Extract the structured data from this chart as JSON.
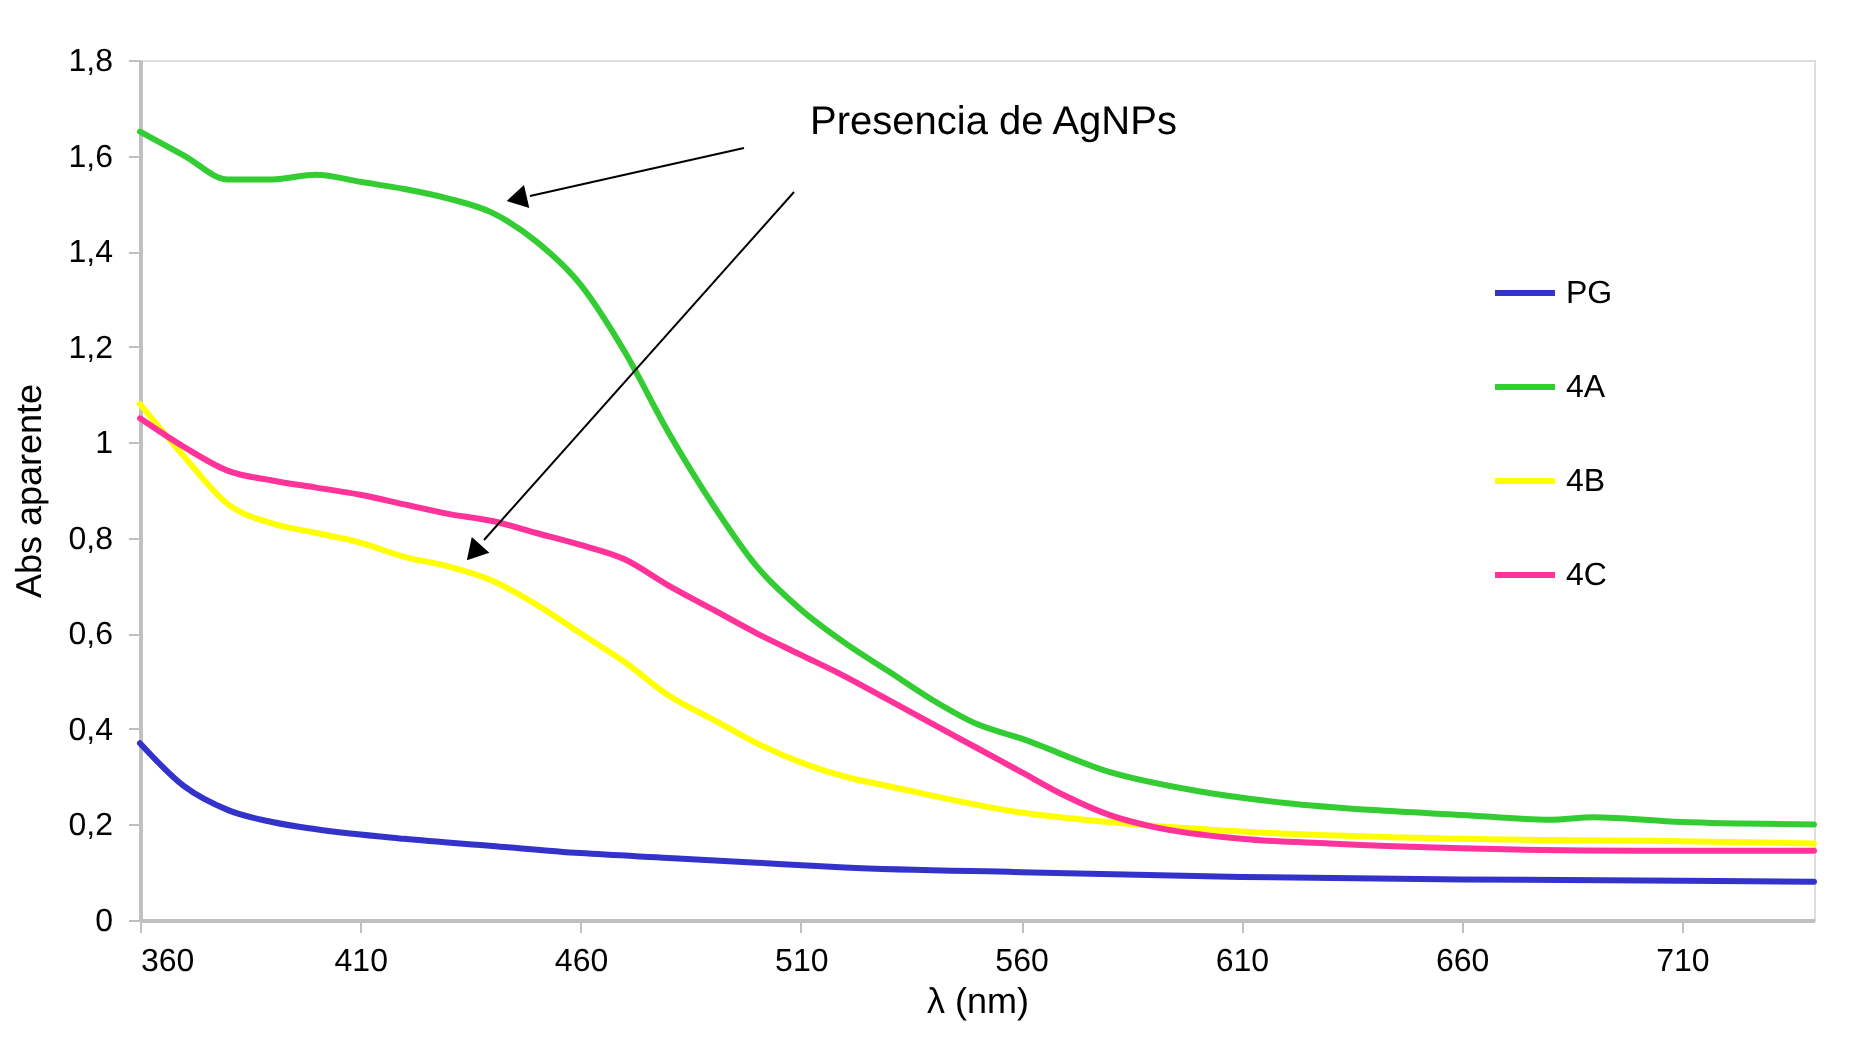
{
  "chart_data": {
    "type": "line",
    "xlabel": "λ (nm)",
    "ylabel": "Abs aparente",
    "annotations": [
      "Presencia de AgNPs"
    ],
    "xlim": [
      360,
      740
    ],
    "xticks": [
      360,
      410,
      460,
      510,
      560,
      610,
      660,
      710
    ],
    "ylim": [
      0,
      1.8
    ],
    "yticks": [
      0,
      {
        "value": 0.2,
        "label": "0,2"
      },
      {
        "value": 0.4,
        "label": "0,4"
      },
      {
        "value": 0.6,
        "label": "0,6"
      },
      {
        "value": 0.8,
        "label": "0,8"
      },
      1,
      {
        "value": 1.2,
        "label": "1,2"
      },
      {
        "value": 1.4,
        "label": "1,4"
      },
      {
        "value": 1.6,
        "label": "1,6"
      },
      {
        "value": 1.8,
        "label": "1,8"
      }
    ],
    "grid": false,
    "legend": "top right",
    "marker": "none",
    "line_style": "solid",
    "series": [
      {
        "name": "PG",
        "color": "#3333cc",
        "x": [
          360,
          370,
          380,
          390,
          400,
          420,
          440,
          460,
          480,
          500,
          520,
          560,
          610,
          660,
          710,
          740
        ],
        "values": [
          0.37,
          0.28,
          0.23,
          0.205,
          0.19,
          0.17,
          0.155,
          0.14,
          0.13,
          0.12,
          0.11,
          0.1,
          0.09,
          0.085,
          0.082,
          0.08
        ]
      },
      {
        "name": "4A",
        "color": "#33cc33",
        "x": [
          360,
          370,
          380,
          390,
          400,
          410,
          420,
          430,
          440,
          450,
          460,
          470,
          480,
          490,
          500,
          510,
          520,
          530,
          540,
          550,
          560,
          580,
          600,
          620,
          640,
          660,
          680,
          690,
          710,
          740
        ],
        "values": [
          1.65,
          1.6,
          1.55,
          1.55,
          1.56,
          1.545,
          1.53,
          1.51,
          1.48,
          1.42,
          1.33,
          1.19,
          1.02,
          0.87,
          0.74,
          0.65,
          0.58,
          0.52,
          0.46,
          0.41,
          0.38,
          0.31,
          0.27,
          0.245,
          0.23,
          0.22,
          0.21,
          0.215,
          0.205,
          0.2
        ]
      },
      {
        "name": "4B",
        "color": "#ffff00",
        "x": [
          360,
          370,
          380,
          390,
          400,
          410,
          420,
          430,
          440,
          450,
          460,
          470,
          480,
          490,
          500,
          510,
          520,
          530,
          560,
          580,
          610,
          660,
          710,
          740
        ],
        "values": [
          1.08,
          0.97,
          0.87,
          0.83,
          0.81,
          0.79,
          0.76,
          0.74,
          0.71,
          0.66,
          0.6,
          0.54,
          0.47,
          0.42,
          0.37,
          0.33,
          0.3,
          0.28,
          0.225,
          0.205,
          0.185,
          0.17,
          0.165,
          0.16
        ]
      },
      {
        "name": "4C",
        "color": "#ff3399",
        "x": [
          360,
          370,
          380,
          390,
          400,
          410,
          420,
          430,
          440,
          450,
          460,
          470,
          480,
          490,
          500,
          510,
          520,
          530,
          540,
          550,
          560,
          570,
          580,
          590,
          610,
          630,
          660,
          700,
          740
        ],
        "values": [
          1.05,
          0.99,
          0.94,
          0.92,
          0.905,
          0.89,
          0.87,
          0.85,
          0.835,
          0.81,
          0.785,
          0.755,
          0.7,
          0.65,
          0.6,
          0.555,
          0.51,
          0.46,
          0.41,
          0.36,
          0.31,
          0.26,
          0.22,
          0.195,
          0.17,
          0.16,
          0.15,
          0.145,
          0.145
        ]
      }
    ]
  }
}
